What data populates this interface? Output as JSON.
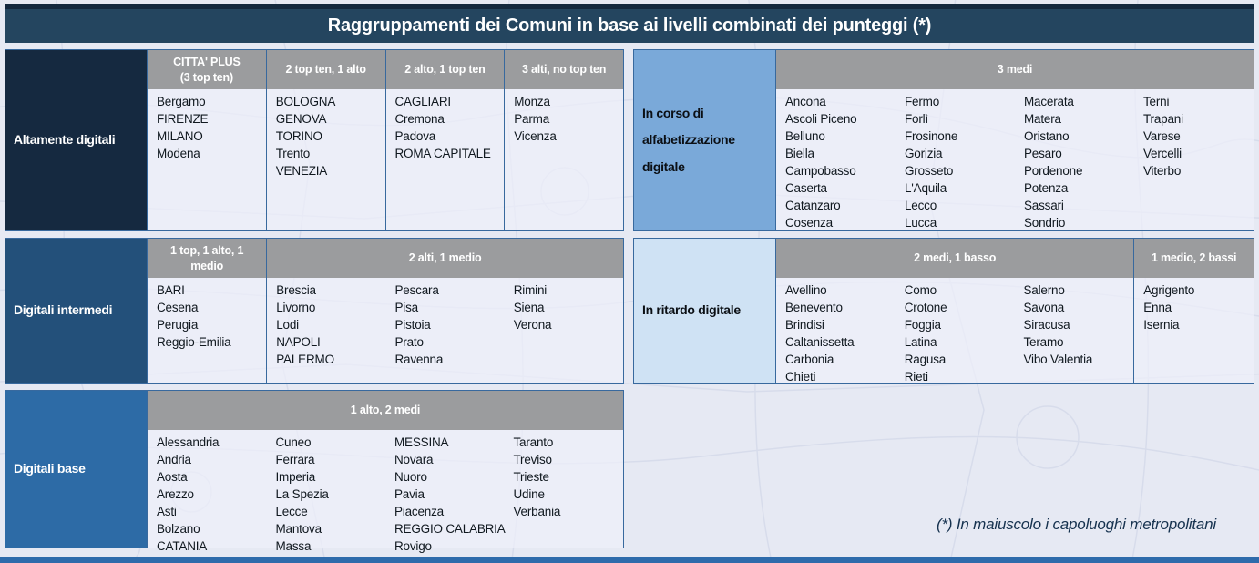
{
  "title": "Raggruppamenti dei Comuni in base ai livelli combinati dei punteggi (*)",
  "footnote": "(*) In maiuscolo i capoluoghi metropolitani",
  "colors": {
    "title_bar": "#24455f",
    "header_gray": "#9b9c9e",
    "border_blue": "#38699e",
    "bottom_strip": "#2e6bab",
    "page_background": "#e6e9f3"
  },
  "groups": [
    {
      "id": "altamente-digitali",
      "label": "Altamente digitali",
      "label_bg": "#152940",
      "label_color": "#ffffff",
      "sections": [
        {
          "header": "CITTA' PLUS\n(3 top ten)",
          "columns": [
            [
              "Bergamo",
              "FIRENZE",
              "MILANO",
              "Modena"
            ]
          ]
        },
        {
          "header": "2 top ten, 1 alto",
          "columns": [
            [
              "BOLOGNA",
              "GENOVA",
              "TORINO",
              "Trento",
              "VENEZIA"
            ]
          ]
        },
        {
          "header": "2 alto, 1 top ten",
          "columns": [
            [
              "CAGLIARI",
              "Cremona",
              "Padova",
              "ROMA CAPITALE"
            ]
          ]
        },
        {
          "header": "3 alti, no top ten",
          "columns": [
            [
              "Monza",
              "Parma",
              "Vicenza"
            ]
          ]
        }
      ]
    },
    {
      "id": "digitali-intermedi",
      "label": "Digitali intermedi",
      "label_bg": "#23507a",
      "label_color": "#ffffff",
      "sections": [
        {
          "header": "1 top, 1 alto, 1 medio",
          "columns": [
            [
              "BARI",
              "Cesena",
              "Perugia",
              "Reggio-Emilia"
            ]
          ]
        },
        {
          "header": "2 alti, 1 medio",
          "columns": [
            [
              "Brescia",
              "Livorno",
              "Lodi",
              "NAPOLI",
              "PALERMO"
            ],
            [
              "Pescara",
              "Pisa",
              "Pistoia",
              "Prato",
              "Ravenna"
            ],
            [
              "Rimini",
              "Siena",
              "Verona"
            ]
          ]
        }
      ]
    },
    {
      "id": "digitali-base",
      "label": "Digitali base",
      "label_bg": "#2d6ba6",
      "label_color": "#ffffff",
      "sections": [
        {
          "header": "1 alto, 2 medi",
          "columns": [
            [
              "Alessandria",
              "Andria",
              "Aosta",
              "Arezzo",
              "Asti",
              "Bolzano",
              "CATANIA"
            ],
            [
              "Cuneo",
              "Ferrara",
              "Imperia",
              "La Spezia",
              "Lecce",
              "Mantova",
              "Massa"
            ],
            [
              "MESSINA",
              "Novara",
              "Nuoro",
              "Pavia",
              "Piacenza",
              "REGGIO CALABRIA",
              "Rovigo"
            ],
            [
              "Taranto",
              "Treviso",
              "Trieste",
              "Udine",
              "Verbania"
            ]
          ]
        }
      ]
    },
    {
      "id": "in-corso-di-alfabetizzazione-digitale",
      "label": "In corso di alfabetizzazione digitale",
      "label_bg": "#7aa9d9",
      "label_color": "#0b0f14",
      "sections": [
        {
          "header": "3 medi",
          "columns": [
            [
              "Ancona",
              "Ascoli Piceno",
              "Belluno",
              "Biella",
              "Campobasso",
              "Caserta",
              "Catanzaro",
              "Cosenza"
            ],
            [
              "Fermo",
              "Forlì",
              "Frosinone",
              "Gorizia",
              "Grosseto",
              "L'Aquila",
              "Lecco",
              "Lucca"
            ],
            [
              "Macerata",
              "Matera",
              "Oristano",
              "Pesaro",
              "Pordenone",
              "Potenza",
              "Sassari",
              "Sondrio"
            ],
            [
              "Terni",
              "Trapani",
              "Varese",
              "Vercelli",
              "Viterbo"
            ]
          ]
        }
      ]
    },
    {
      "id": "in-ritardo-digitale",
      "label": "In ritardo digitale",
      "label_bg": "#cfe2f4",
      "label_color": "#0b0f14",
      "sections": [
        {
          "header": "2 medi, 1 basso",
          "columns": [
            [
              "Avellino",
              "Benevento",
              "Brindisi",
              "Caltanissetta",
              "Carbonia",
              "Chieti"
            ],
            [
              "Como",
              "Crotone",
              "Foggia",
              "Latina",
              "Ragusa",
              "Rieti"
            ],
            [
              "Salerno",
              "Savona",
              "Siracusa",
              "Teramo",
              "Vibo Valentia"
            ]
          ]
        },
        {
          "header": "1 medio, 2 bassi",
          "columns": [
            [
              "Agrigento",
              "Enna",
              "Isernia"
            ]
          ]
        }
      ]
    }
  ]
}
